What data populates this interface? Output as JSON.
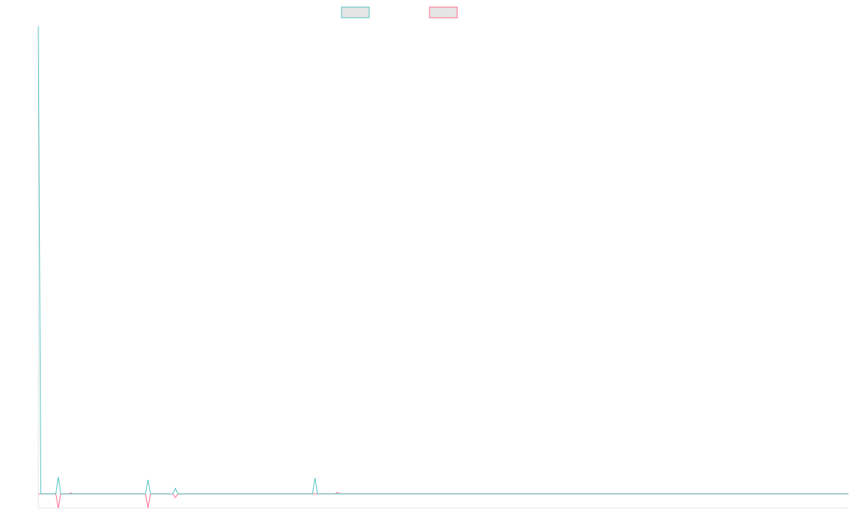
{
  "chart_data": {
    "type": "line",
    "title": "",
    "xlabel": "",
    "ylabel": "",
    "grid": false,
    "legend_position": "top-center",
    "x_count": 326,
    "ylim": [
      -0.03,
      1.0
    ],
    "series": [
      {
        "key": "series_a",
        "color": "#4bc0c0",
        "fill": "#e5e5e5",
        "points": [
          [
            0,
            1.0
          ],
          [
            1,
            0.0
          ],
          [
            7,
            0.0
          ],
          [
            8,
            0.036
          ],
          [
            9,
            0.0
          ],
          [
            43,
            0.0
          ],
          [
            44,
            0.03
          ],
          [
            45,
            0.0
          ],
          [
            54,
            0.0
          ],
          [
            55,
            0.012
          ],
          [
            56,
            0.0
          ],
          [
            110,
            0.0
          ],
          [
            111,
            0.034
          ],
          [
            112,
            0.0
          ],
          [
            325,
            0.0
          ]
        ]
      },
      {
        "key": "series_b",
        "color": "#ff6384",
        "fill": "#e5e5e5",
        "points": [
          [
            0,
            0.0
          ],
          [
            7,
            0.0
          ],
          [
            8,
            -0.03
          ],
          [
            9,
            0.0
          ],
          [
            12,
            0.0
          ],
          [
            13,
            0.002
          ],
          [
            14,
            0.0
          ],
          [
            43,
            0.0
          ],
          [
            44,
            -0.03
          ],
          [
            45,
            0.0
          ],
          [
            54,
            0.0
          ],
          [
            55,
            -0.008
          ],
          [
            56,
            0.0
          ],
          [
            119,
            0.0
          ],
          [
            120,
            0.003
          ],
          [
            121,
            0.0
          ],
          [
            325,
            0.0
          ]
        ]
      }
    ]
  }
}
